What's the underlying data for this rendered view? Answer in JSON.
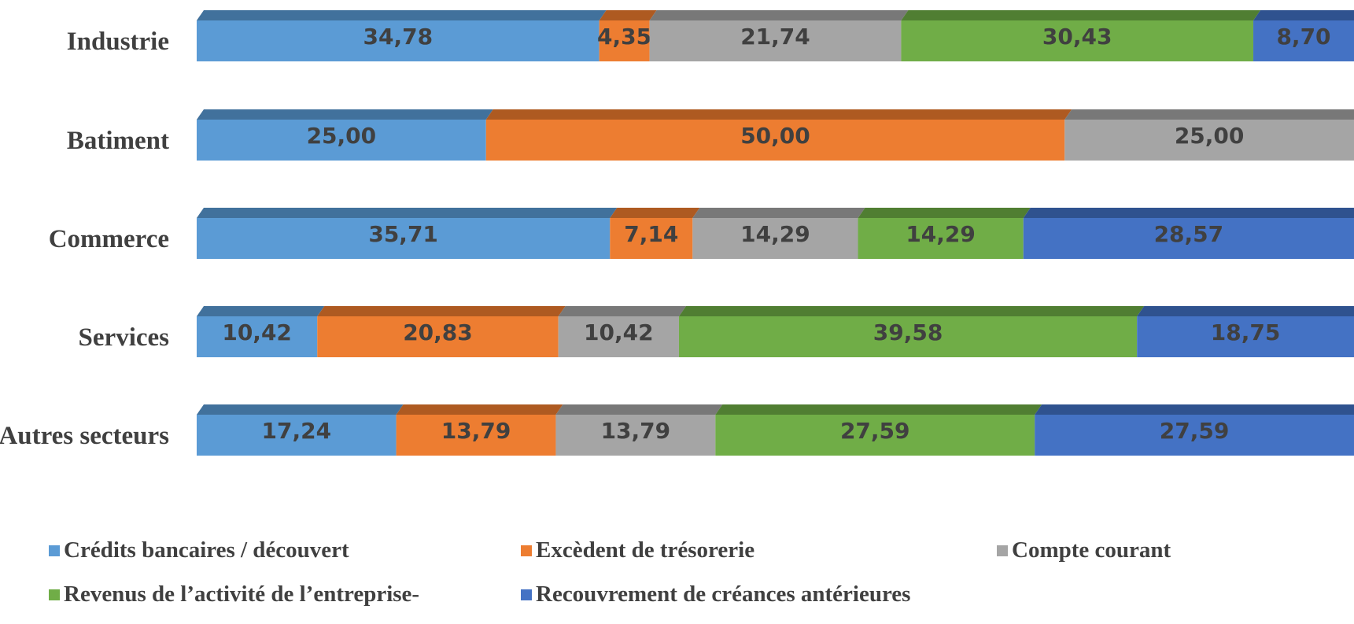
{
  "chart_data": {
    "type": "bar",
    "orientation": "horizontal",
    "stacked": "100%",
    "categories": [
      "Industrie",
      "Batiment",
      "Commerce",
      "Services",
      "Autres secteurs"
    ],
    "series": [
      {
        "name": "Crédits bancaires / découvert",
        "color": "#5B9BD5",
        "top_color": "#41719C",
        "values": [
          34.78,
          25.0,
          35.71,
          10.42,
          17.24
        ],
        "labels": [
          "34,78",
          "25,00",
          "35,71",
          "10,42",
          "17,24"
        ]
      },
      {
        "name": "Excèdent de trésorerie",
        "color": "#ED7D31",
        "top_color": "#AE5A21",
        "values": [
          4.35,
          50.0,
          7.14,
          20.83,
          13.79
        ],
        "labels": [
          "4,35",
          "50,00",
          "7,14",
          "20,83",
          "13,79"
        ]
      },
      {
        "name": "Compte courant",
        "color": "#A5A5A5",
        "top_color": "#787878",
        "values": [
          21.74,
          25.0,
          14.29,
          10.42,
          13.79
        ],
        "labels": [
          "21,74",
          "25,00",
          "14,29",
          "10,42",
          "13,79"
        ]
      },
      {
        "name": "Revenus de l’activité de l’entreprise-",
        "color": "#70AD47",
        "top_color": "#507E32",
        "values": [
          30.43,
          0,
          14.29,
          39.58,
          27.59
        ],
        "labels": [
          "30,43",
          "",
          "14,29",
          "39,58",
          "27,59"
        ]
      },
      {
        "name": "Recouvrement de créances antérieures",
        "color": "#4472C4",
        "top_color": "#2F528F",
        "values": [
          8.7,
          0,
          28.57,
          18.75,
          27.59
        ],
        "labels": [
          "8,70",
          "",
          "28,57",
          "18,75",
          "27,59"
        ]
      }
    ],
    "xlim": [
      0,
      100
    ],
    "grid": false,
    "legend_position": "bottom"
  }
}
